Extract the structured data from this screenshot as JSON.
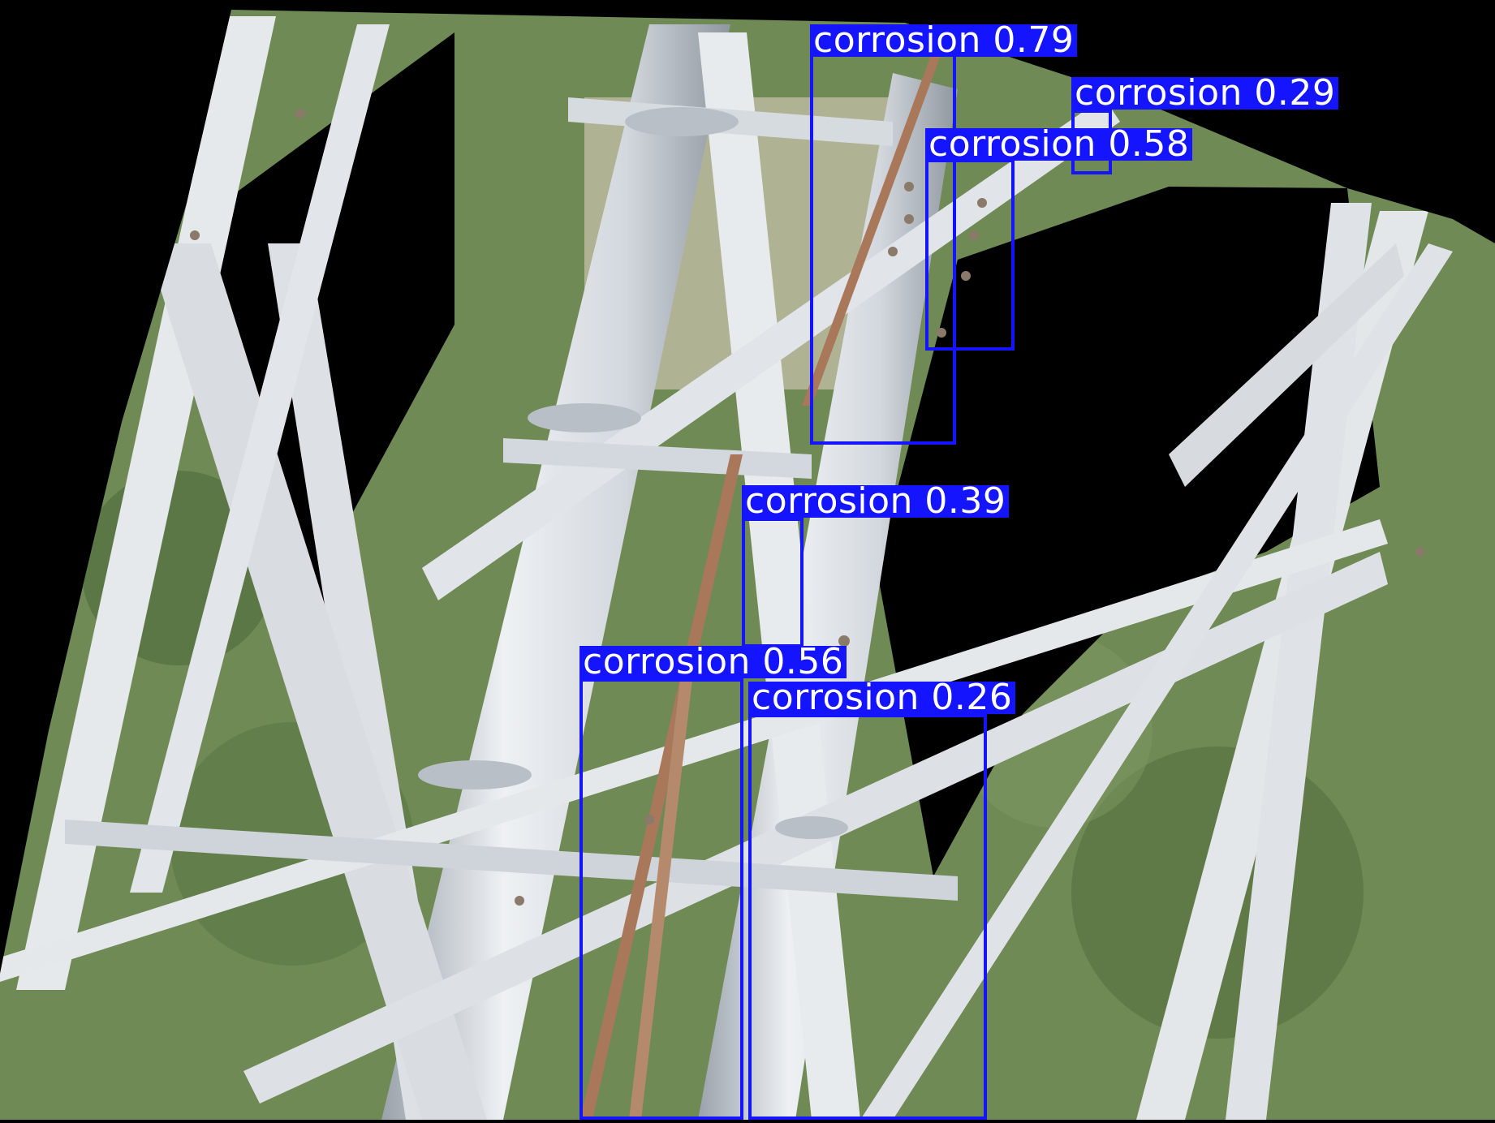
{
  "detections": [
    {
      "class": "corrosion",
      "score": "0.79",
      "label": "corrosion 0.79"
    },
    {
      "class": "corrosion",
      "score": "0.29",
      "label": "corrosion 0.29"
    },
    {
      "class": "corrosion",
      "score": "0.58",
      "label": "corrosion 0.58"
    },
    {
      "class": "corrosion",
      "score": "0.39",
      "label": "corrosion 0.39"
    },
    {
      "class": "corrosion",
      "score": "0.56",
      "label": "corrosion 0.56"
    },
    {
      "class": "corrosion",
      "score": "0.26",
      "label": "corrosion 0.26"
    }
  ],
  "colors": {
    "box": "#1414ff",
    "label_text": "#ffffff",
    "background": "#000000",
    "steel": "#dfe3e8",
    "steel_shadow": "#a9b0b8",
    "rust": "#a9785a",
    "foliage": "#6f8a55",
    "foliage_dark": "#4f6a3a",
    "field": "#b7b79a"
  }
}
